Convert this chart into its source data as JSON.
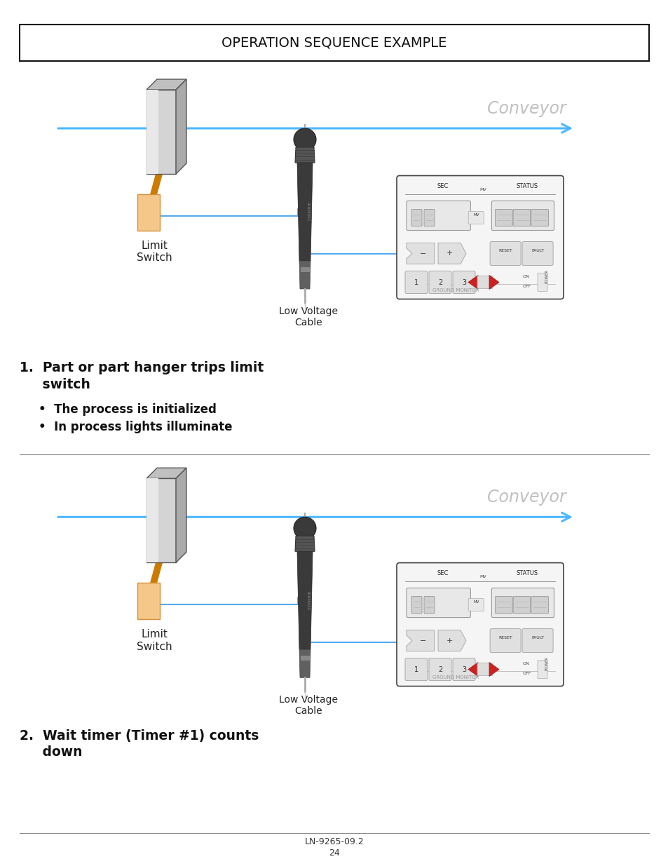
{
  "title": "OPERATION SEQUENCE EXAMPLE",
  "bg_color": "#ffffff",
  "conveyor_color": "#3399ee",
  "conveyor_text_color": "#b8b8b8",
  "orange_wire_color": "#cc7700",
  "orange_rect_color": "#f5c070",
  "orange_rect_edge": "#d4903a",
  "blue_line_color": "#55aaff",
  "limit_switch_label": "Limit\nSwitch",
  "low_voltage_label": "Low Voltage\nCable",
  "footer_text": "LN-9265-09.2",
  "page_number": "24",
  "sec1_title": "1.  Part or part hanger trips limit\n     switch",
  "sec1_bullet1": "•  The process is initialized",
  "sec1_bullet2": "•  In process lights illuminate",
  "sec2_title": "2.  Wait timer (Timer #1) counts\n     down"
}
